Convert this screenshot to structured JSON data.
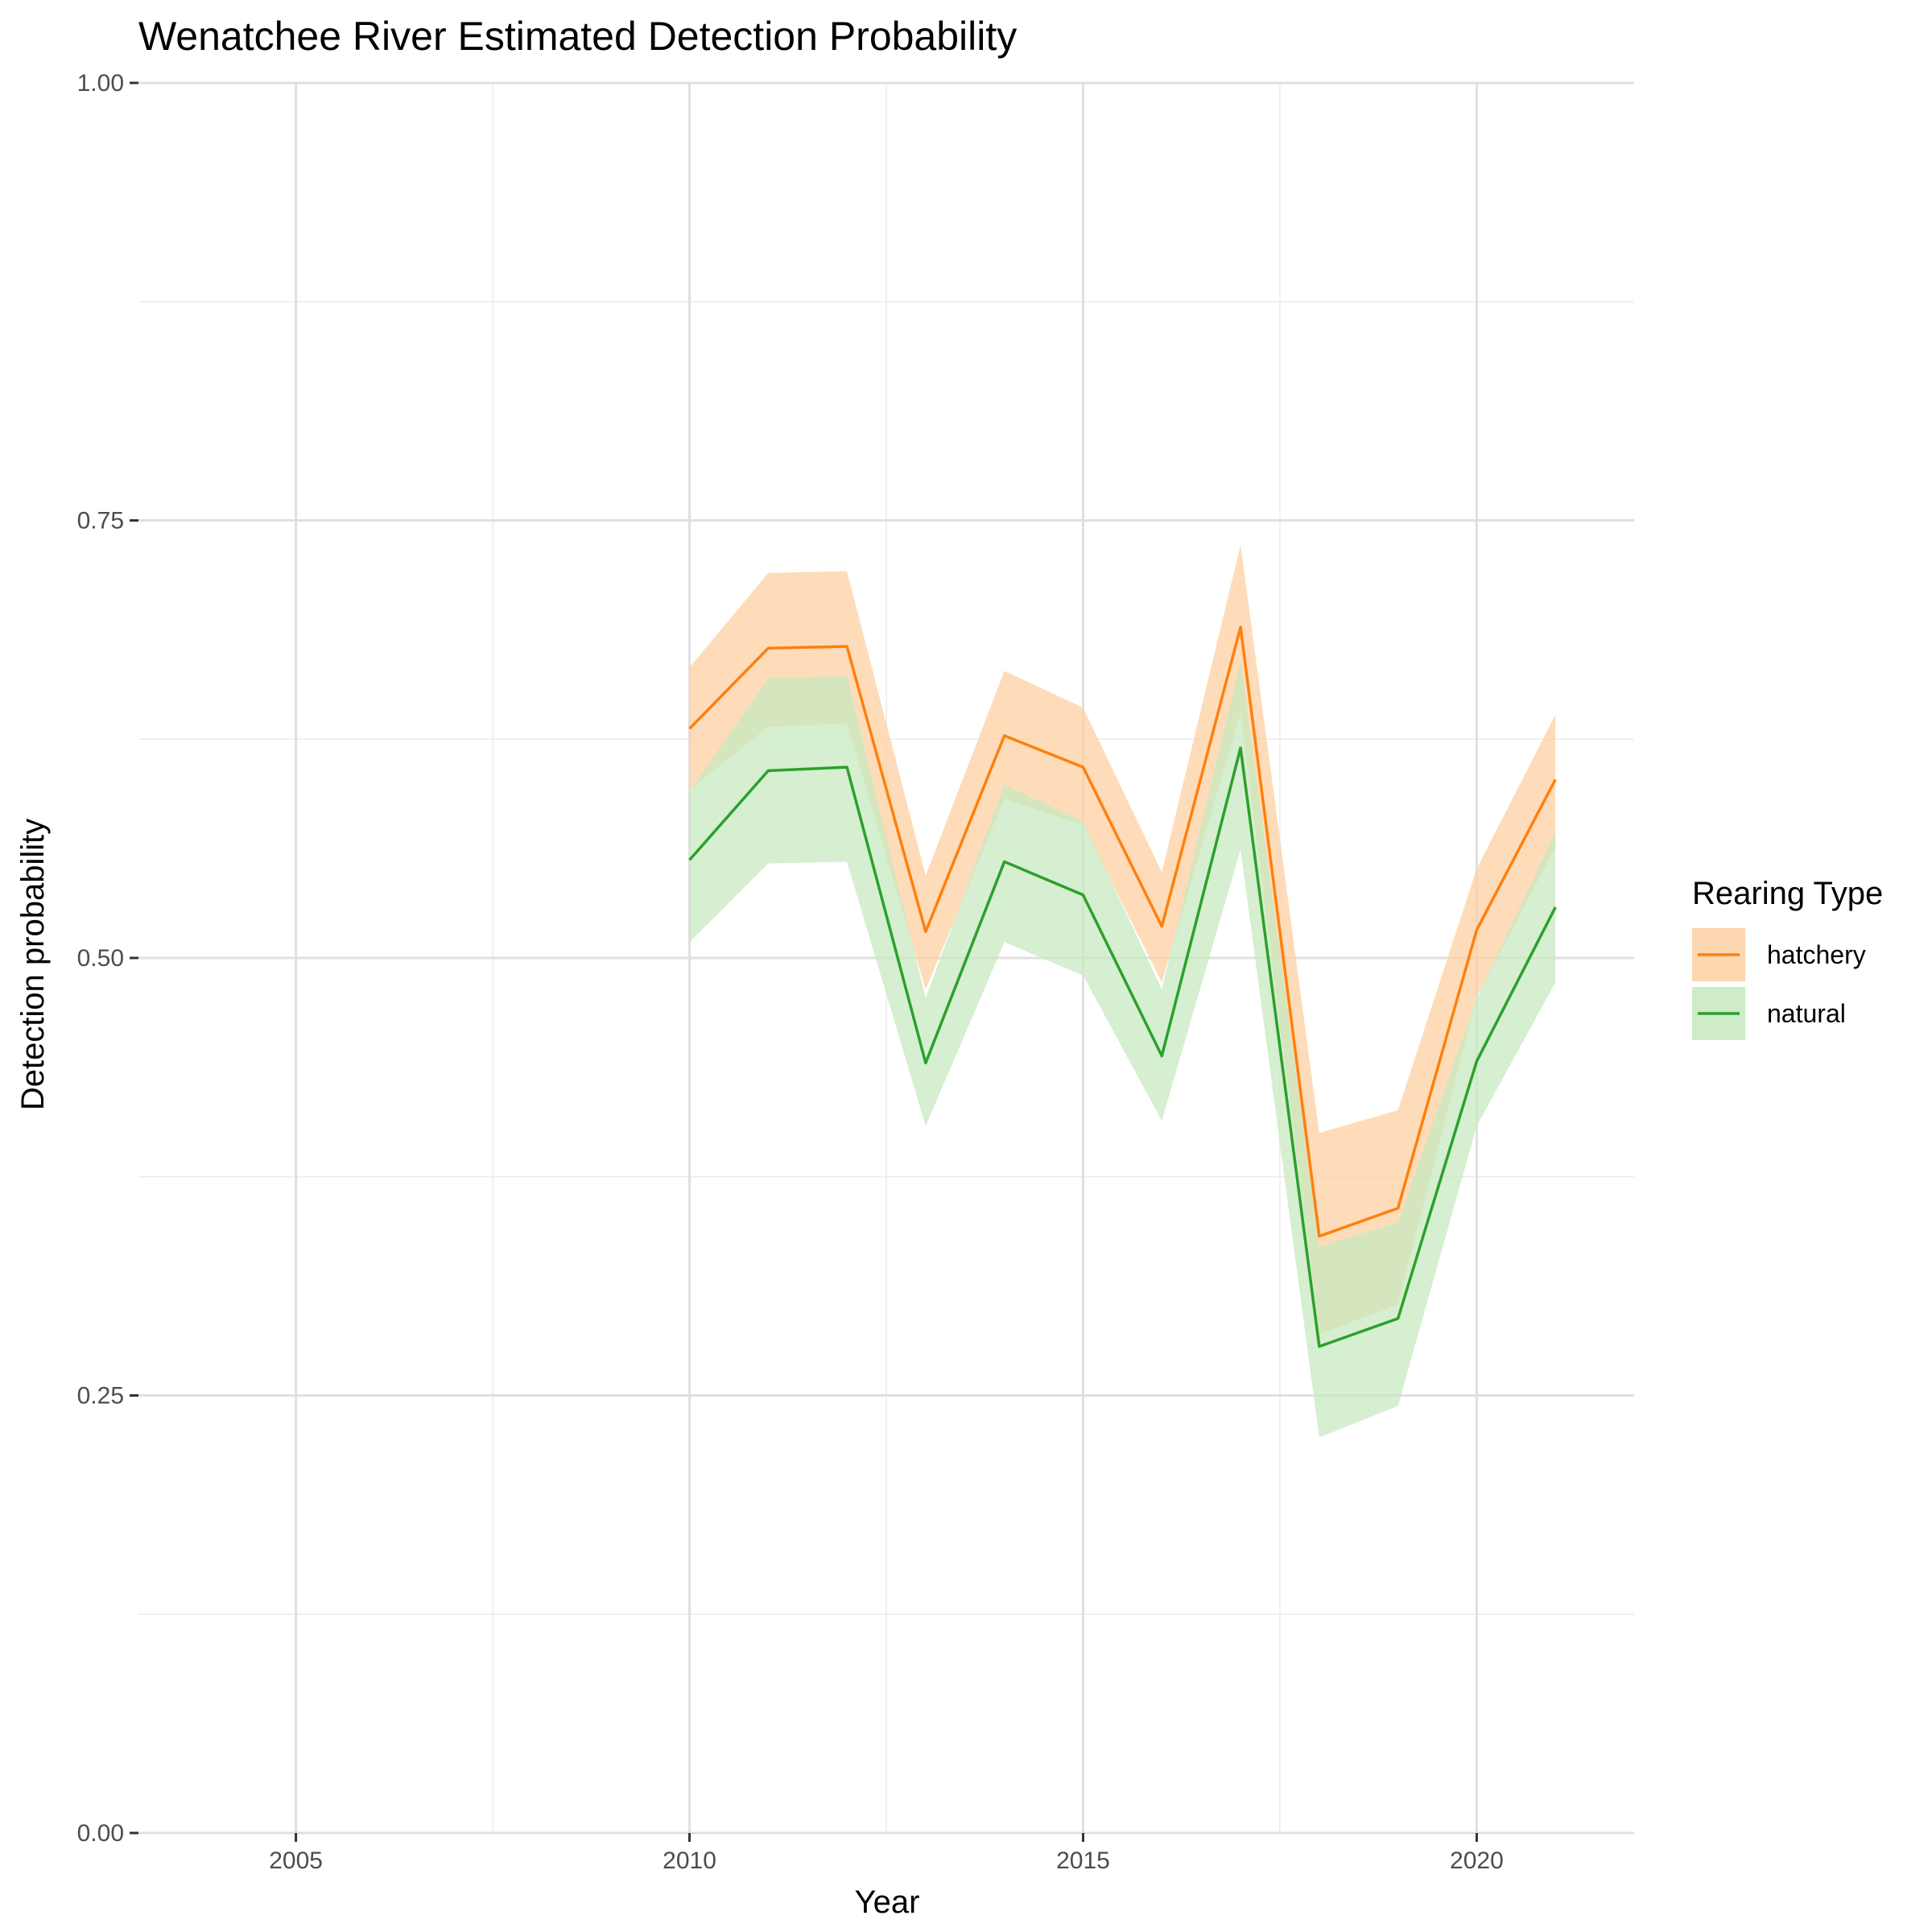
{
  "chart_data": {
    "type": "line",
    "title": "Wenatchee River Estimated Detection Probability",
    "xlabel": "Year",
    "ylabel": "Detection probability",
    "xlim": [
      2003,
      2022
    ],
    "ylim": [
      0,
      1
    ],
    "x_ticks": [
      2005,
      2010,
      2015,
      2020
    ],
    "x_tick_labels": [
      "2005",
      "2010",
      "2015",
      "2020"
    ],
    "y_ticks": [
      0,
      0.25,
      0.5,
      0.75,
      1
    ],
    "y_tick_labels": [
      "0.00",
      "0.25",
      "0.50",
      "0.75",
      "1.00"
    ],
    "grid": true,
    "legend": {
      "title": "Rearing Type",
      "position": "right"
    },
    "x": [
      2010,
      2011,
      2012,
      2013,
      2014,
      2015,
      2016,
      2017,
      2018,
      2019,
      2020,
      2021
    ],
    "series": [
      {
        "name": "hatchery",
        "color": "#ff7f0e",
        "ribbon_color": "#fdd0a2",
        "values": [
          0.631,
          0.677,
          0.678,
          0.515,
          0.627,
          0.609,
          0.518,
          0.689,
          0.341,
          0.357,
          0.516,
          0.602
        ],
        "lower": [
          0.596,
          0.632,
          0.634,
          0.482,
          0.591,
          0.576,
          0.486,
          0.64,
          0.285,
          0.302,
          0.478,
          0.563
        ],
        "upper": [
          0.666,
          0.72,
          0.721,
          0.547,
          0.664,
          0.643,
          0.549,
          0.736,
          0.4,
          0.413,
          0.551,
          0.639
        ]
      },
      {
        "name": "natural",
        "color": "#2ca02c",
        "ribbon_color": "#c7e9c0",
        "values": [
          0.556,
          0.607,
          0.609,
          0.44,
          0.555,
          0.536,
          0.444,
          0.62,
          0.278,
          0.294,
          0.441,
          0.529
        ],
        "lower": [
          0.509,
          0.554,
          0.555,
          0.404,
          0.509,
          0.49,
          0.407,
          0.562,
          0.226,
          0.244,
          0.404,
          0.486
        ],
        "upper": [
          0.595,
          0.66,
          0.661,
          0.477,
          0.599,
          0.578,
          0.482,
          0.67,
          0.335,
          0.349,
          0.477,
          0.572
        ]
      }
    ]
  }
}
